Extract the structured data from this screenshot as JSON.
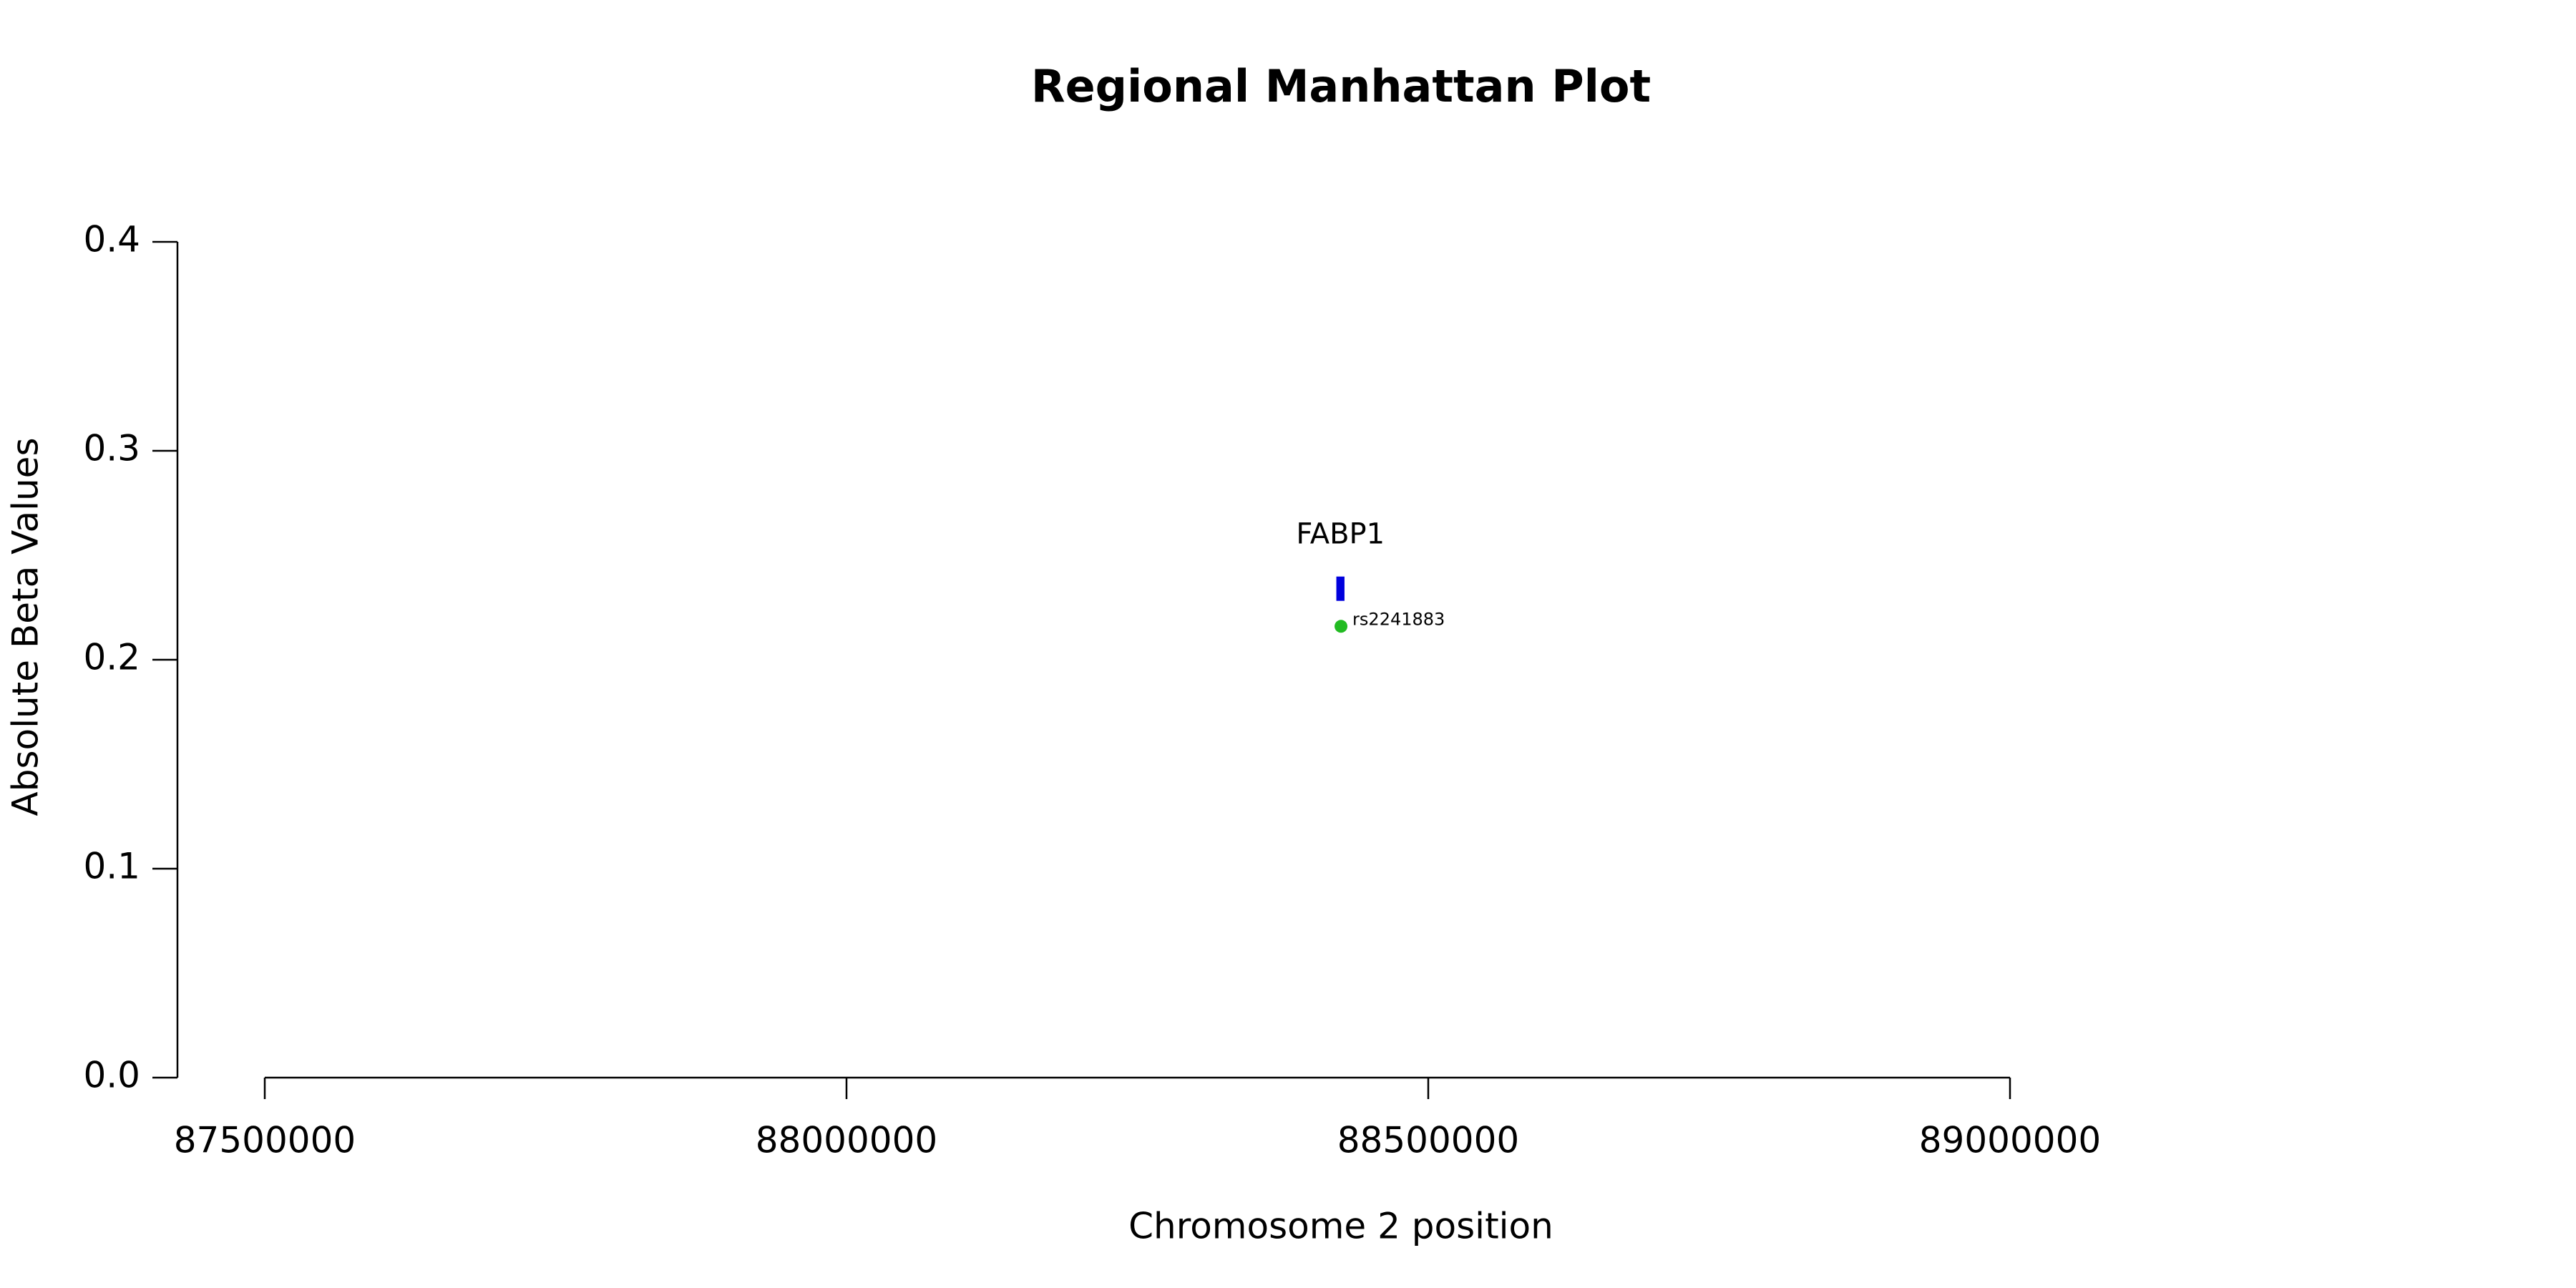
{
  "chart_data": {
    "type": "scatter",
    "title": "Regional Manhattan Plot",
    "x_label": "Chromosome 2 position",
    "y_label": "Absolute Beta Values",
    "series": [
      {
        "name": "rs2241883",
        "color": "#22bb22",
        "x": [
          88425000
        ],
        "values": [
          0.216
        ],
        "point_labels": [
          "rs2241883"
        ]
      }
    ],
    "genes": [
      {
        "name": "FABP1",
        "start": 88421000,
        "end": 88428000,
        "y": 0.234,
        "color": "#0000dd"
      }
    ],
    "xlim": [
      87500000,
      89000000
    ],
    "xticks": [
      87500000,
      88000000,
      88500000,
      89000000
    ],
    "ylim": [
      0,
      0.4
    ],
    "yticks": [
      {
        "value": 0,
        "label": "0.0"
      },
      0.1,
      0.2,
      0.3,
      0.4
    ]
  }
}
